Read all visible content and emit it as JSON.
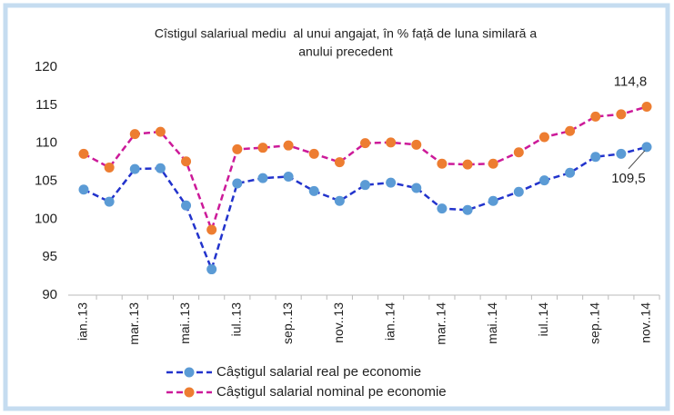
{
  "chart_data": {
    "type": "line",
    "title": [
      "Cîstigul salariual mediu  al unui angajat, în % față de luna similară a",
      "anului precedent"
    ],
    "categories": [
      "ian..13",
      null,
      "mar..13",
      null,
      "mai..13",
      null,
      "iul..13",
      null,
      "sep..13",
      null,
      "nov..13",
      null,
      "ian..14",
      null,
      "mar..14",
      null,
      "mai..14",
      null,
      "iul..14",
      null,
      "sep..14",
      null,
      "nov..14"
    ],
    "series": [
      {
        "name": "Câștigul salarial real pe economie",
        "color": "#2233cc",
        "marker_color": "#5b9bd5",
        "values": [
          103.9,
          102.3,
          106.6,
          106.7,
          101.8,
          93.4,
          104.7,
          105.4,
          105.6,
          103.7,
          102.4,
          104.5,
          104.8,
          104.1,
          101.4,
          101.2,
          102.4,
          103.6,
          105.1,
          106.1,
          108.2,
          108.6,
          109.5
        ],
        "value_labels": [
          null,
          null,
          null,
          null,
          null,
          null,
          null,
          null,
          null,
          null,
          null,
          null,
          null,
          null,
          null,
          null,
          null,
          null,
          null,
          null,
          null,
          null,
          "109,5"
        ]
      },
      {
        "name": "Câștigul salarial nominal pe economie",
        "color": "#cc1a99",
        "marker_color": "#ed7d31",
        "values": [
          108.6,
          106.8,
          111.2,
          111.5,
          107.6,
          98.6,
          109.2,
          109.4,
          109.7,
          108.6,
          107.5,
          110.0,
          110.1,
          109.8,
          107.3,
          107.2,
          107.3,
          108.8,
          110.8,
          111.6,
          113.5,
          113.8,
          114.8
        ],
        "value_labels": [
          null,
          null,
          null,
          null,
          null,
          null,
          null,
          null,
          null,
          null,
          null,
          null,
          null,
          null,
          null,
          null,
          null,
          null,
          null,
          null,
          null,
          null,
          "114,8"
        ]
      }
    ],
    "ylim": [
      90,
      120
    ],
    "yticks": [
      90,
      95,
      100,
      105,
      110,
      115,
      120
    ],
    "grid": false,
    "legend": "bottom"
  }
}
